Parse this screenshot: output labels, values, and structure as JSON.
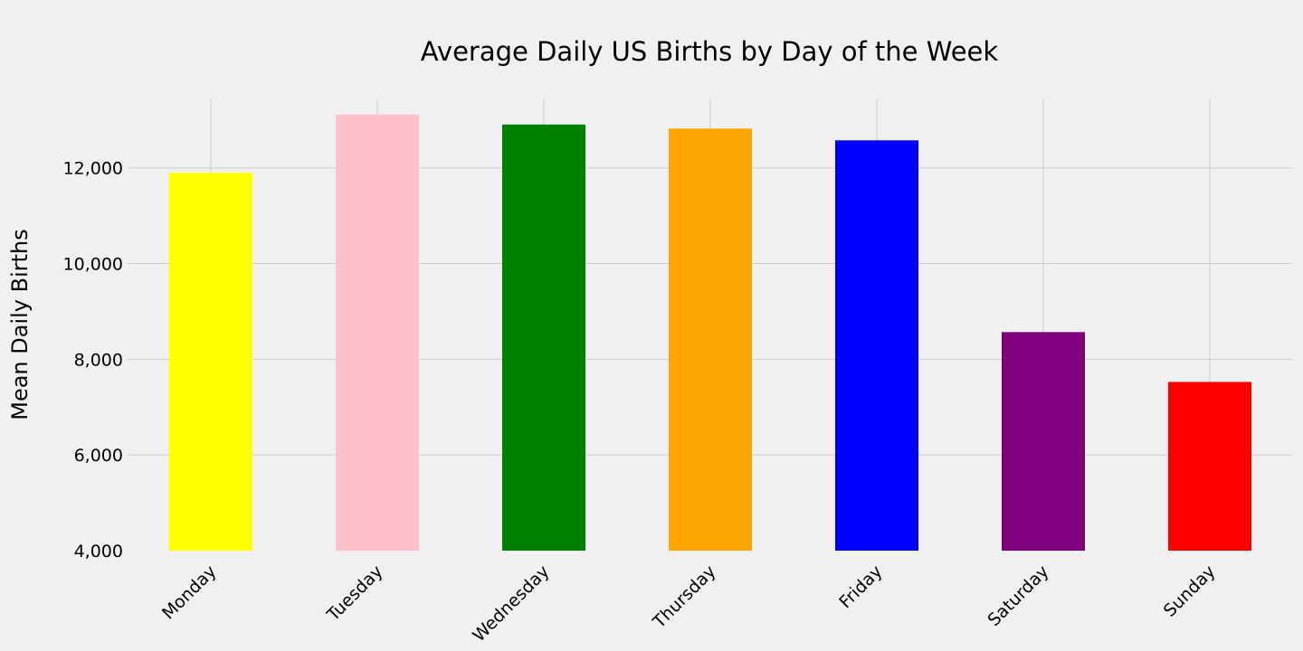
{
  "chart_data": {
    "type": "bar",
    "title": "Average Daily US Births by Day of the Week",
    "xlabel": "",
    "ylabel": "Mean Daily Births",
    "categories": [
      "Monday",
      "Tuesday",
      "Wednesday",
      "Thursday",
      "Friday",
      "Saturday",
      "Sunday"
    ],
    "values": [
      11897,
      13115,
      12907,
      12822,
      12576,
      8568,
      7526
    ],
    "colors": [
      "#ffff00",
      "#ffc0cb",
      "#008000",
      "#ffa500",
      "#0000ff",
      "#800080",
      "#ff0000"
    ],
    "ylim": [
      4000,
      13450
    ],
    "yticks": [
      4000,
      6000,
      8000,
      10000,
      12000
    ],
    "ytick_labels": [
      "4,000",
      "6,000",
      "8,000",
      "10,000",
      "12,000"
    ],
    "grid": true,
    "background": "#f0f0f0"
  }
}
